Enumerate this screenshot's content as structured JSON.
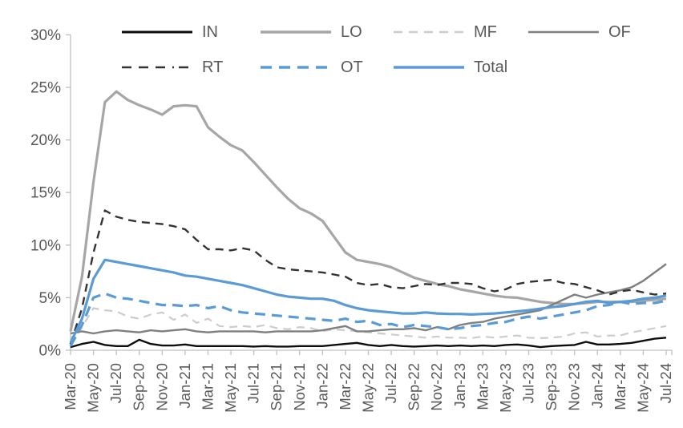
{
  "chart_data": {
    "type": "line",
    "title": "",
    "xlabel": "",
    "ylabel": "",
    "grid": false,
    "legend_position": "top",
    "legend_rows": [
      [
        "IN",
        "LO",
        "MF",
        "OF"
      ],
      [
        "RT",
        "OT",
        "Total"
      ]
    ],
    "y_axis": {
      "min": 0,
      "max": 30,
      "step": 5,
      "format": "percent",
      "tick_labels": [
        "0%",
        "5%",
        "10%",
        "15%",
        "20%",
        "25%",
        "30%"
      ]
    },
    "x_tick_step": 2,
    "x": [
      "Mar-20",
      "Apr-20",
      "May-20",
      "Jun-20",
      "Jul-20",
      "Aug-20",
      "Sep-20",
      "Oct-20",
      "Nov-20",
      "Dec-20",
      "Jan-21",
      "Feb-21",
      "Mar-21",
      "Apr-21",
      "May-21",
      "Jun-21",
      "Jul-21",
      "Aug-21",
      "Sep-21",
      "Oct-21",
      "Nov-21",
      "Dec-21",
      "Jan-22",
      "Feb-22",
      "Mar-22",
      "Apr-22",
      "May-22",
      "Jun-22",
      "Jul-22",
      "Aug-22",
      "Sep-22",
      "Oct-22",
      "Nov-22",
      "Dec-22",
      "Jan-23",
      "Feb-23",
      "Mar-23",
      "Apr-23",
      "May-23",
      "Jun-23",
      "Jul-23",
      "Aug-23",
      "Sep-23",
      "Oct-23",
      "Nov-23",
      "Dec-23",
      "Jan-24",
      "Feb-24",
      "Mar-24",
      "Apr-24",
      "May-24",
      "Jun-24",
      "Jul-24"
    ],
    "series": [
      {
        "name": "IN",
        "color": "#0d0d0d",
        "line_style": "solid",
        "stroke_width": 2.4,
        "values": [
          0.3,
          0.6,
          0.8,
          0.5,
          0.4,
          0.4,
          1.0,
          0.6,
          0.45,
          0.45,
          0.55,
          0.4,
          0.4,
          0.4,
          0.4,
          0.4,
          0.35,
          0.4,
          0.35,
          0.35,
          0.4,
          0.4,
          0.4,
          0.5,
          0.6,
          0.7,
          0.5,
          0.4,
          0.5,
          0.4,
          0.35,
          0.4,
          0.45,
          0.4,
          0.45,
          0.4,
          0.45,
          0.4,
          0.5,
          0.55,
          0.45,
          0.3,
          0.4,
          0.45,
          0.5,
          0.8,
          0.55,
          0.55,
          0.6,
          0.7,
          0.9,
          1.1,
          1.2
        ]
      },
      {
        "name": "LO",
        "color": "#a6a6a6",
        "line_style": "solid",
        "stroke_width": 3.2,
        "values": [
          1.8,
          7.0,
          16.0,
          23.6,
          24.6,
          23.8,
          23.3,
          22.9,
          22.4,
          23.2,
          23.3,
          23.2,
          21.2,
          20.3,
          19.5,
          19.0,
          17.9,
          16.7,
          15.5,
          14.4,
          13.5,
          13.0,
          12.3,
          10.8,
          9.3,
          8.6,
          8.4,
          8.2,
          7.9,
          7.4,
          6.9,
          6.6,
          6.3,
          6.1,
          5.8,
          5.6,
          5.4,
          5.2,
          5.05,
          5.0,
          4.8,
          4.6,
          4.5,
          4.4,
          4.4,
          4.5,
          4.6,
          4.6,
          4.6,
          4.6,
          4.7,
          4.8,
          4.9
        ]
      },
      {
        "name": "MF",
        "color": "#cccccc",
        "line_style": "dashed",
        "stroke_width": 2.2,
        "values": [
          0.5,
          2.2,
          4.0,
          3.8,
          3.7,
          3.2,
          3.0,
          3.4,
          3.6,
          2.9,
          3.4,
          2.6,
          3.0,
          2.3,
          2.2,
          2.3,
          2.2,
          2.4,
          2.1,
          2.0,
          2.2,
          2.1,
          1.8,
          2.0,
          1.9,
          1.8,
          1.7,
          1.6,
          1.5,
          1.4,
          1.3,
          1.2,
          1.3,
          1.2,
          1.2,
          1.15,
          1.3,
          1.2,
          1.3,
          1.4,
          1.2,
          1.15,
          1.2,
          1.3,
          1.6,
          1.7,
          1.3,
          1.4,
          1.4,
          1.7,
          1.9,
          2.1,
          2.3
        ]
      },
      {
        "name": "OF",
        "color": "#7f7f7f",
        "line_style": "solid",
        "stroke_width": 2.4,
        "values": [
          1.6,
          1.8,
          1.6,
          1.8,
          1.9,
          1.8,
          1.7,
          1.9,
          1.8,
          1.9,
          2.0,
          1.8,
          1.7,
          1.8,
          1.8,
          1.8,
          1.8,
          1.7,
          1.8,
          1.8,
          1.8,
          1.8,
          1.9,
          2.1,
          2.3,
          1.8,
          1.8,
          1.9,
          2.0,
          2.0,
          2.1,
          1.9,
          2.2,
          2.0,
          2.4,
          2.6,
          2.7,
          3.0,
          3.2,
          3.4,
          3.6,
          3.8,
          4.3,
          4.8,
          5.3,
          5.0,
          5.3,
          5.5,
          5.7,
          6.0,
          6.6,
          7.4,
          8.2
        ]
      },
      {
        "name": "RT",
        "color": "#333333",
        "line_style": "dashed",
        "stroke_width": 2.4,
        "values": [
          0.6,
          4.0,
          9.3,
          13.3,
          12.7,
          12.4,
          12.2,
          12.1,
          12.0,
          11.8,
          11.5,
          10.5,
          9.6,
          9.6,
          9.5,
          9.7,
          9.5,
          8.6,
          7.9,
          7.7,
          7.6,
          7.5,
          7.4,
          7.2,
          7.0,
          6.4,
          6.2,
          6.3,
          6.0,
          5.9,
          6.1,
          6.3,
          6.2,
          6.4,
          6.4,
          6.3,
          5.9,
          5.6,
          5.8,
          6.3,
          6.5,
          6.6,
          6.7,
          6.4,
          6.3,
          6.0,
          5.7,
          5.3,
          5.6,
          5.75,
          5.5,
          5.3,
          5.4
        ]
      },
      {
        "name": "OT",
        "color": "#5b9bd5",
        "line_style": "dashed",
        "stroke_width": 3.2,
        "values": [
          0.4,
          2.4,
          5.0,
          5.4,
          5.0,
          4.9,
          4.7,
          4.5,
          4.3,
          4.3,
          4.2,
          4.3,
          4.0,
          4.2,
          3.8,
          3.6,
          3.5,
          3.4,
          3.3,
          3.2,
          3.1,
          3.0,
          2.9,
          2.8,
          3.0,
          2.7,
          2.8,
          2.4,
          2.5,
          2.2,
          2.4,
          2.3,
          2.2,
          2.0,
          2.1,
          2.3,
          2.4,
          2.6,
          2.7,
          3.0,
          3.2,
          3.0,
          3.2,
          3.4,
          3.6,
          3.8,
          4.2,
          4.3,
          4.6,
          4.4,
          4.5,
          4.5,
          4.7
        ]
      },
      {
        "name": "Total",
        "color": "#5b9bd5",
        "line_style": "solid",
        "stroke_width": 3.2,
        "values": [
          0.7,
          3.0,
          6.8,
          8.6,
          8.4,
          8.2,
          8.0,
          7.8,
          7.6,
          7.4,
          7.1,
          7.0,
          6.8,
          6.6,
          6.4,
          6.2,
          5.9,
          5.6,
          5.3,
          5.1,
          5.0,
          4.9,
          4.9,
          4.7,
          4.3,
          4.0,
          3.8,
          3.7,
          3.6,
          3.5,
          3.5,
          3.6,
          3.5,
          3.45,
          3.45,
          3.4,
          3.45,
          3.5,
          3.6,
          3.7,
          3.8,
          3.95,
          4.1,
          4.2,
          4.4,
          4.6,
          4.7,
          4.5,
          4.6,
          4.7,
          4.9,
          5.0,
          5.2
        ]
      }
    ],
    "colors": {
      "axis_line": "#bfbfbf",
      "tick_label": "#595959",
      "legend_label": "#595959",
      "background": "#ffffff",
      "accent_blue": "#5b9bd5"
    }
  }
}
